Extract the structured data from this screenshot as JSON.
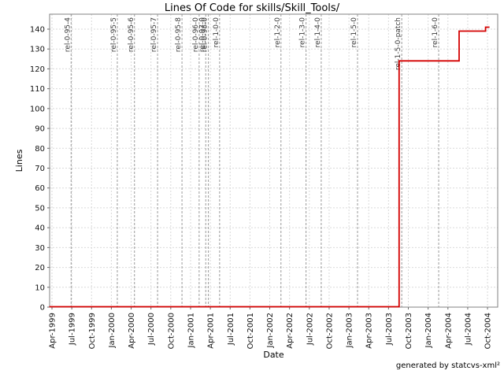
{
  "chart_data": {
    "type": "line",
    "subtype": "step",
    "title": "Lines Of Code for skills/Skill_Tools/",
    "xlabel": "Date",
    "ylabel": "Lines",
    "footer": "generated by statcvs-xml²",
    "grid": true,
    "ylim": [
      0,
      145
    ],
    "y_ticks": [
      0,
      10,
      20,
      30,
      40,
      50,
      60,
      70,
      80,
      90,
      100,
      110,
      120,
      130,
      140
    ],
    "x_tick_labels": [
      "Apr-1999",
      "Jul-1999",
      "Oct-1999",
      "Jan-2000",
      "Apr-2000",
      "Jul-2000",
      "Oct-2000",
      "Jan-2001",
      "Apr-2001",
      "Jul-2001",
      "Oct-2001",
      "Jan-2002",
      "Apr-2002",
      "Jul-2002",
      "Oct-2002",
      "Jan-2003",
      "Apr-2003",
      "Jul-2003",
      "Oct-2003",
      "Jan-2004",
      "Apr-2004",
      "Jul-2004",
      "Oct-2004"
    ],
    "x_tick_interval_months": 3,
    "series": [
      {
        "name": "Lines of Code",
        "points_months_value": [
          [
            -0.4,
            0
          ],
          [
            52.6,
            0
          ],
          [
            52.6,
            124
          ],
          [
            61.7,
            124
          ],
          [
            61.7,
            139
          ],
          [
            65.7,
            139
          ],
          [
            65.7,
            141
          ],
          [
            66.3,
            141
          ]
        ]
      }
    ],
    "releases": [
      {
        "label": "rel-0-95-4",
        "months_after_start": 2.9
      },
      {
        "label": "rel-0-95-5",
        "months_after_start": 9.9
      },
      {
        "label": "rel-0-95-6",
        "months_after_start": 12.5
      },
      {
        "label": "rel-0-95-7",
        "months_after_start": 16.0
      },
      {
        "label": "rel-0-95-8",
        "months_after_start": 19.7
      },
      {
        "label": "rel-0-96-0",
        "months_after_start": 22.3
      },
      {
        "label": "rel-0-97-0",
        "months_after_start": 23.3
      },
      {
        "label": "rel-0-98-0",
        "months_after_start": 23.7
      },
      {
        "label": "rel-1-0-0",
        "months_after_start": 25.4
      },
      {
        "label": "rel-1-2-0",
        "months_after_start": 34.7
      },
      {
        "label": "rel-1-3-0",
        "months_after_start": 38.5
      },
      {
        "label": "rel-1-4-0",
        "months_after_start": 40.8
      },
      {
        "label": "rel-1-5-0",
        "months_after_start": 46.3
      },
      {
        "label": "rel-1-5-0-patch",
        "months_after_start": 53.0
      },
      {
        "label": "rel-1-6-0",
        "months_after_start": 58.6
      }
    ],
    "colors": {
      "line": "#d40000",
      "grid": "#d9d9d9",
      "release_line": "#9a9a9a",
      "release_label": "#3a3a3a",
      "frame": "#808080",
      "tick_text": "#111111"
    }
  }
}
